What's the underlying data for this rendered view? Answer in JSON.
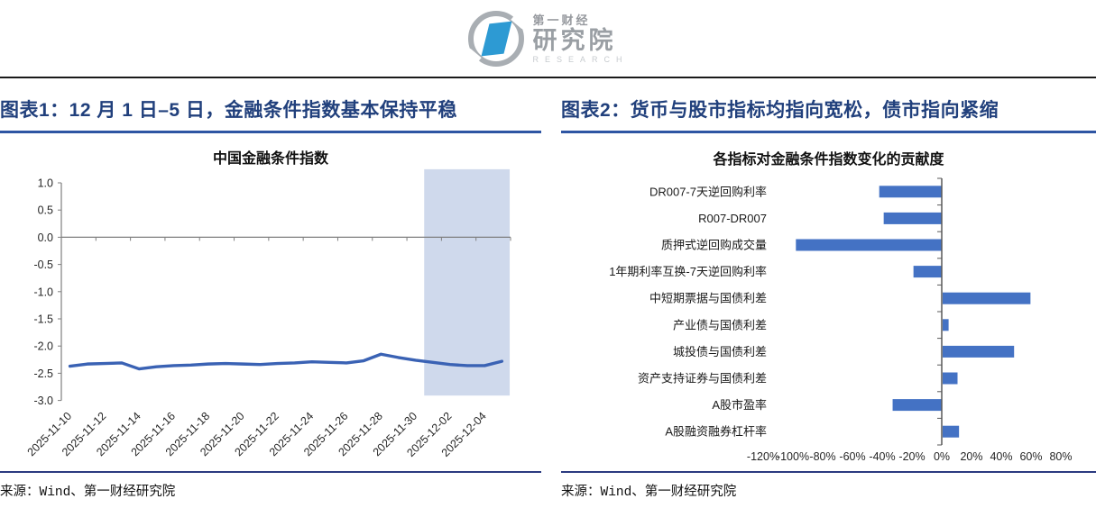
{
  "logo": {
    "brand": "第一财经",
    "name": "研究院",
    "sub": "RESEARCH"
  },
  "colors": {
    "header_text": "#21407C",
    "header_underline": "#2E55A3",
    "footer_rule": "#2B3A80",
    "top_rule": "#1A1A1A",
    "line": "#3A62B4",
    "highlight_band": "#CFD9EC",
    "bar": "#4472C4",
    "axis_gray": "#7F7F7F",
    "bar_axis": "#595959",
    "logo_blue": "#2D9AD3",
    "logo_gray": "#A9AEB3"
  },
  "panels": [
    {
      "header": "图表1：12 月 1 日–5 日，金融条件指数基本保持平稳",
      "source": "来源：Wind、第一财经研究院"
    },
    {
      "header": "图表2：货币与股市指标均指向宽松，债市指向紧缩",
      "source": "来源：Wind、第一财经研究院"
    }
  ],
  "chart_data": [
    {
      "type": "line",
      "title": "中国金融条件指数",
      "x": [
        "2025-11-10",
        "2025-11-11",
        "2025-11-12",
        "2025-11-13",
        "2025-11-14",
        "2025-11-15",
        "2025-11-16",
        "2025-11-17",
        "2025-11-18",
        "2025-11-19",
        "2025-11-20",
        "2025-11-21",
        "2025-11-22",
        "2025-11-23",
        "2025-11-24",
        "2025-11-25",
        "2025-11-26",
        "2025-11-27",
        "2025-11-28",
        "2025-11-29",
        "2025-11-30",
        "2025-12-01",
        "2025-12-02",
        "2025-12-03",
        "2025-12-04",
        "2025-12-05"
      ],
      "values": [
        -2.37,
        -2.33,
        -2.32,
        -2.31,
        -2.42,
        -2.38,
        -2.36,
        -2.35,
        -2.33,
        -2.32,
        -2.33,
        -2.34,
        -2.32,
        -2.31,
        -2.29,
        -2.3,
        -2.31,
        -2.27,
        -2.15,
        -2.21,
        -2.26,
        -2.3,
        -2.34,
        -2.36,
        -2.36,
        -2.28
      ],
      "ylim": [
        -3.0,
        1.0
      ],
      "yticks": [
        "1.0",
        "0.5",
        "0.0",
        "-0.5",
        "-1.0",
        "-1.5",
        "-2.0",
        "-2.5",
        "-3.0"
      ],
      "xtick_labels": [
        "2025-11-10",
        "2025-11-12",
        "2025-11-14",
        "2025-11-16",
        "2025-11-18",
        "2025-11-20",
        "2025-11-22",
        "2025-11-24",
        "2025-11-26",
        "2025-11-28",
        "2025-11-30",
        "2025-12-02",
        "2025-12-04"
      ],
      "highlight": {
        "from": "2025-12-01",
        "to": "2025-12-05",
        "y_top": 1.25,
        "y_bottom": -2.91
      },
      "grid": false,
      "legend": false
    },
    {
      "type": "bar",
      "orientation": "horizontal",
      "title": "各指标对金融条件指数变化的贡献度",
      "categories": [
        "DR007-7天逆回购利率",
        "R007-DR007",
        "质押式逆回购成交量",
        "1年期利率互换-7天逆回购利率",
        "中短期票据与国债利差",
        "产业债与国债利差",
        "城投债与国债利差",
        "资产支持证券与国债利差",
        "A股市盈率",
        "A股融资融券杠杆率"
      ],
      "values": [
        -42,
        -39,
        -98,
        -19,
        59,
        4,
        48,
        10,
        -33,
        11
      ],
      "unit": "%",
      "xlim": [
        -120,
        80
      ],
      "xticks": [
        "-120%",
        "-100%",
        "-80%",
        "-60%",
        "-40%",
        "-20%",
        "0%",
        "20%",
        "40%",
        "60%",
        "80%"
      ],
      "grid": false,
      "legend": false
    }
  ]
}
